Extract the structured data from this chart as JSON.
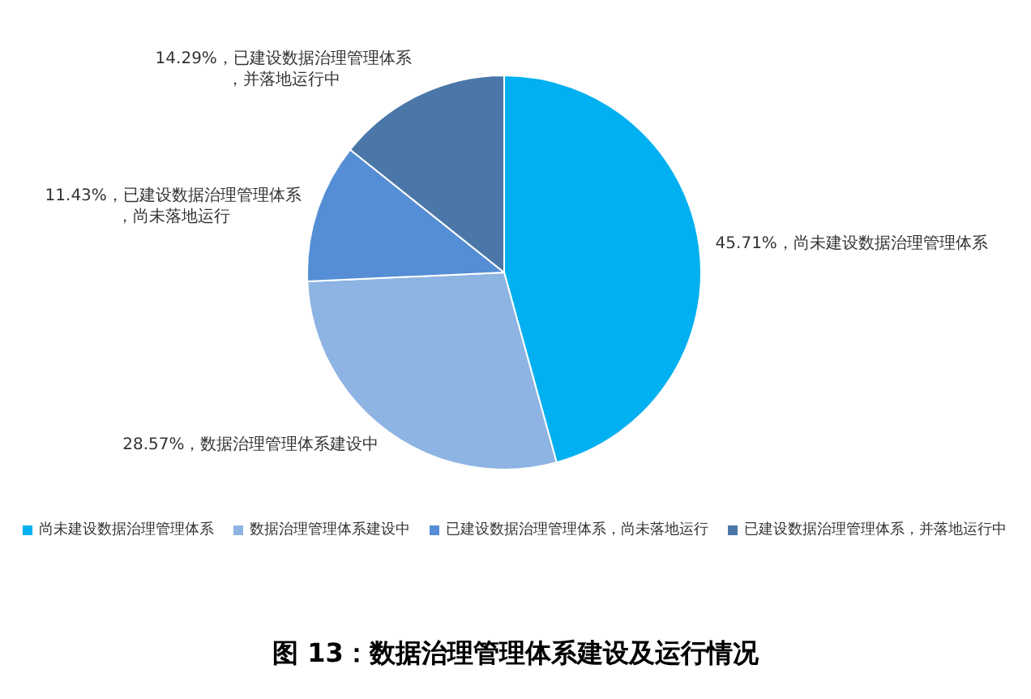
{
  "chart_data": {
    "type": "pie",
    "title": "图 13：数据治理管理体系建设及运行情况",
    "categories": [
      "尚未建设数据治理管理体系",
      "数据治理管理体系建设中",
      "已建设数据治理管理体系，尚未落地运行",
      "已建设数据治理管理体系，并落地运行中"
    ],
    "values": [
      45.71,
      28.57,
      11.43,
      14.29
    ],
    "colors": [
      "#00b0f0",
      "#8db4e2",
      "#558ed5",
      "#4a77a8"
    ],
    "value_labels": [
      "45.71%，尚未建设数据治理管理体系",
      "28.57%，数据治理管理体系建设中",
      "11.43%，已建设数据治理管理体系，尚未落地运行",
      "14.29%，已建设数据治理管理体系，并落地运行中"
    ],
    "legend": "bottom"
  }
}
